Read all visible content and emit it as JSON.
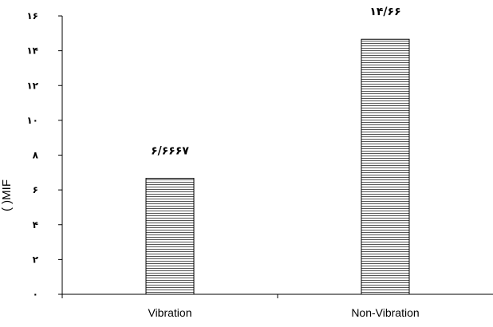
{
  "chart_data": {
    "type": "bar",
    "categories": [
      "Vibration",
      "Non-Vibration"
    ],
    "values": [
      6.6667,
      14.66
    ],
    "data_labels": [
      "۶/۶۶۶۷",
      "۱۴/۶۶"
    ],
    "ylim": [
      0,
      16
    ],
    "yticks": [
      0,
      2,
      4,
      6,
      8,
      10,
      12,
      14,
      16
    ],
    "ytick_labels": [
      "۰",
      "۲",
      "۴",
      "۶",
      "۸",
      "۱۰",
      "۱۲",
      "۱۴",
      "۱۶"
    ],
    "ylabel": "(        )MIF",
    "xlabel": "",
    "title": "",
    "grid": false,
    "legend": "none",
    "bar_fill": "horizontal-line-hatch",
    "colors": {
      "bar_border": "#000000",
      "hatch": "#555555",
      "axis": "#000000"
    }
  }
}
